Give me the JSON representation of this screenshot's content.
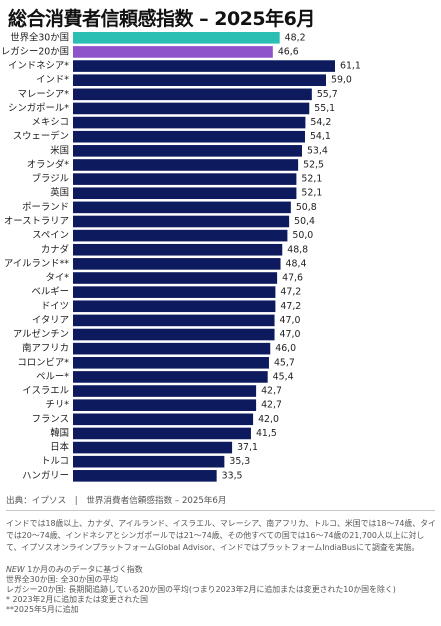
{
  "title": "総合消費者信頼感指数 – 2025年6月",
  "source": "出典：イプソス　|　世界消費者信頼感指数 – 2025年6月",
  "note": "インドでは18歳以上、カナダ、アイルランド、イスラエル、マレーシア、南アフリカ、トルコ、米国では18～74歳、タイでは20～74歳、インドネシアとシンガポールでは21～74歳、その他すべての国では16～74歳の21,700人以上に対して、イプソスオンラインプラットフォームGlobal Advisor、インドではプラットフォームIndiaBusにて調査を実施。",
  "legend": {
    "new_tag": "NEW",
    "new_text": " 1か月のみのデータに基づく指数",
    "line1": "世界全30か国: 全30か国の平均",
    "line2": "レガシー20か国: 長期間追跡している20か国の平均(つまり2023年2月に追加または変更された10か国を除く)",
    "line3": "* 2023年2月に追加または変更された国",
    "line4": "**2025年5月に追加"
  },
  "colors": {
    "bar": "#0d1b5e",
    "global": "#2bbfb3",
    "legacy": "#8e52c9"
  },
  "chart_data": {
    "type": "bar",
    "orientation": "horizontal",
    "title": "総合消費者信頼感指数 – 2025年6月",
    "xlim": [
      0,
      65
    ],
    "grid": false,
    "categories": [
      "世界全30か国",
      "レガシー20か国",
      "インドネシア*",
      "インド*",
      "マレーシア*",
      "シンガポール*",
      "メキシコ",
      "スウェーデン",
      "米国",
      "オランダ*",
      "ブラジル",
      "英国",
      "ポーランド",
      "オーストラリア",
      "スペイン",
      "カナダ",
      "アイルランド**",
      "タイ*",
      "ベルギー",
      "ドイツ",
      "イタリア",
      "アルゼンチン",
      "南アフリカ",
      "コロンビア*",
      "ペルー*",
      "イスラエル",
      "チリ*",
      "フランス",
      "韓国",
      "日本",
      "トルコ",
      "ハンガリー"
    ],
    "values": [
      48.2,
      46.6,
      61.1,
      59.0,
      55.7,
      55.1,
      54.2,
      54.1,
      53.4,
      52.5,
      52.1,
      52.1,
      50.8,
      50.4,
      50.0,
      48.8,
      48.4,
      47.6,
      47.2,
      47.2,
      47.0,
      47.0,
      46.0,
      45.7,
      45.4,
      42.7,
      42.7,
      42.0,
      41.5,
      37.1,
      35.3,
      33.5
    ],
    "value_labels": [
      "48,2",
      "46,6",
      "61,1",
      "59,0",
      "55,7",
      "55,1",
      "54,2",
      "54,1",
      "53,4",
      "52,5",
      "52,1",
      "52,1",
      "50,8",
      "50,4",
      "50,0",
      "48,8",
      "48,4",
      "47,6",
      "47,2",
      "47,2",
      "47,0",
      "47,0",
      "46,0",
      "45,7",
      "45,4",
      "42,7",
      "42,7",
      "42,0",
      "41,5",
      "37,1",
      "35,3",
      "33,5"
    ],
    "bar_colors": [
      "global",
      "legacy",
      "bar",
      "bar",
      "bar",
      "bar",
      "bar",
      "bar",
      "bar",
      "bar",
      "bar",
      "bar",
      "bar",
      "bar",
      "bar",
      "bar",
      "bar",
      "bar",
      "bar",
      "bar",
      "bar",
      "bar",
      "bar",
      "bar",
      "bar",
      "bar",
      "bar",
      "bar",
      "bar",
      "bar",
      "bar",
      "bar"
    ]
  }
}
